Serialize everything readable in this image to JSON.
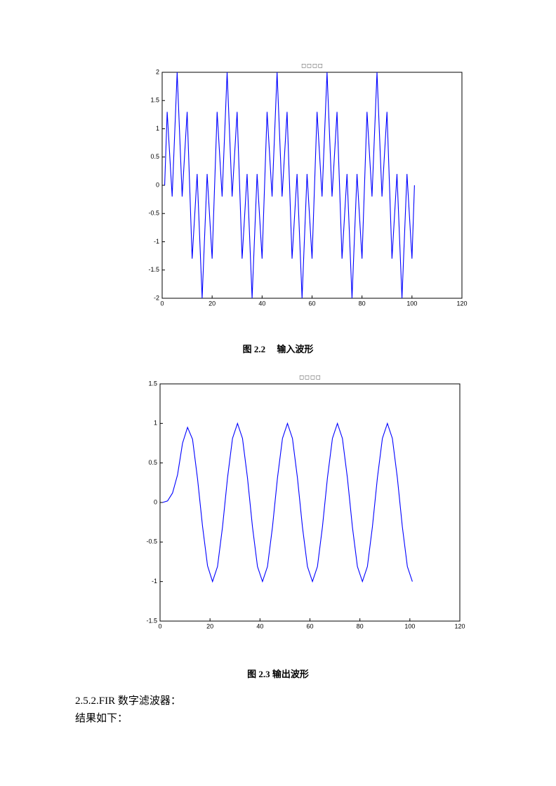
{
  "chart_data": [
    {
      "type": "line",
      "title": "□ □ □ □",
      "color": "#0000ff",
      "x": [
        1,
        2,
        4,
        6,
        8,
        10,
        12,
        14,
        16,
        18,
        20,
        22,
        24,
        26,
        28,
        30,
        32,
        34,
        36,
        38,
        40,
        42,
        44,
        46,
        48,
        50,
        52,
        54,
        56,
        58,
        60,
        62,
        64,
        66,
        68,
        70,
        72,
        74,
        76,
        78,
        80,
        82,
        84,
        86,
        88,
        90,
        92,
        94,
        96,
        98,
        100,
        101
      ],
      "values": [
        0,
        1.3,
        -0.2,
        2,
        -0.2,
        1.3,
        -1.3,
        0.2,
        -2,
        0.2,
        -1.3,
        1.3,
        -0.2,
        2,
        -0.2,
        1.3,
        -1.3,
        0.2,
        -2,
        0.2,
        -1.3,
        1.3,
        -0.2,
        2,
        -0.2,
        1.3,
        -1.3,
        0.2,
        -2,
        0.2,
        -1.3,
        1.3,
        -0.2,
        2,
        -0.2,
        1.3,
        -1.3,
        0.2,
        -2,
        0.2,
        -1.3,
        1.3,
        -0.2,
        2,
        -0.2,
        1.3,
        -1.3,
        0.2,
        -2,
        0.2,
        -1.3,
        0
      ],
      "xlim": [
        0,
        120
      ],
      "xticks": [
        0,
        20,
        40,
        60,
        80,
        100,
        120
      ],
      "ylim": [
        -2,
        2
      ],
      "yticks": [
        -2,
        -1.5,
        -1,
        -0.5,
        0,
        0.5,
        1,
        1.5,
        2
      ]
    },
    {
      "type": "line",
      "title": "□ □ □ □",
      "color": "#0000ff",
      "x": [
        1,
        3,
        5,
        7,
        9,
        11,
        13,
        15,
        17,
        19,
        21,
        23,
        25,
        27,
        29,
        31,
        33,
        35,
        37,
        39,
        41,
        43,
        45,
        47,
        49,
        51,
        53,
        55,
        57,
        59,
        61,
        63,
        65,
        67,
        69,
        71,
        73,
        75,
        77,
        79,
        81,
        83,
        85,
        87,
        89,
        91,
        93,
        95,
        97,
        99,
        101
      ],
      "values": [
        0,
        0.02,
        0.12,
        0.35,
        0.75,
        0.95,
        0.8,
        0.3,
        -0.3,
        -0.8,
        -1,
        -0.81,
        -0.31,
        0.31,
        0.81,
        1,
        0.81,
        0.31,
        -0.31,
        -0.81,
        -1,
        -0.81,
        -0.31,
        0.31,
        0.81,
        1,
        0.81,
        0.31,
        -0.31,
        -0.81,
        -1,
        -0.81,
        -0.31,
        0.31,
        0.81,
        1,
        0.81,
        0.31,
        -0.31,
        -0.81,
        -1,
        -0.81,
        -0.31,
        0.31,
        0.81,
        1,
        0.81,
        0.31,
        -0.31,
        -0.81,
        -1
      ],
      "xlim": [
        0,
        120
      ],
      "xticks": [
        0,
        20,
        40,
        60,
        80,
        100,
        120
      ],
      "ylim": [
        -1.5,
        1.5
      ],
      "yticks": [
        -1.5,
        -1,
        -0.5,
        0,
        0.5,
        1,
        1.5
      ]
    }
  ],
  "captions": [
    "图 2.2　 输入波形",
    "图 2.3 输出波形"
  ],
  "body": [
    "2.5.2.FIR 数字滤波器：",
    "结果如下："
  ]
}
